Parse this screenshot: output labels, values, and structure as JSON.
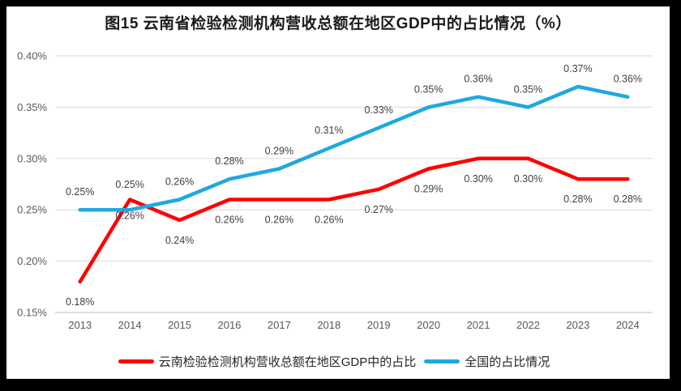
{
  "chart_data": {
    "type": "line",
    "title": "图15 云南省检验检测机构营收总额在地区GDP中的占比情况（%）",
    "categories": [
      "2013",
      "2014",
      "2015",
      "2016",
      "2017",
      "2018",
      "2019",
      "2020",
      "2021",
      "2022",
      "2023",
      "2024"
    ],
    "series": [
      {
        "key": "yunnan",
        "name": "云南检验检测机构营收总额在地区GDP中的占比",
        "color": "#FF0000",
        "values": [
          0.18,
          0.26,
          0.24,
          0.26,
          0.26,
          0.26,
          0.27,
          0.29,
          0.3,
          0.3,
          0.28,
          0.28
        ],
        "labels": [
          "0.18%",
          "0.26%",
          "0.24%",
          "0.26%",
          "0.26%",
          "0.26%",
          "0.27%",
          "0.29%",
          "0.30%",
          "0.30%",
          "0.28%",
          "0.28%"
        ],
        "label_position": "below",
        "label_dy_overrides": {
          "1": 24
        }
      },
      {
        "key": "national",
        "name": "全国的占比情况",
        "color": "#1FA8E1",
        "values": [
          0.25,
          0.25,
          0.26,
          0.28,
          0.29,
          0.31,
          0.33,
          0.35,
          0.36,
          0.35,
          0.37,
          0.36
        ],
        "labels": [
          "0.25%",
          "0.25%",
          "0.26%",
          "0.28%",
          "0.29%",
          "0.31%",
          "0.33%",
          "0.35%",
          "0.36%",
          "0.35%",
          "0.37%",
          "0.36%"
        ],
        "label_position": "above",
        "label_dy_overrides": {
          "1": -27
        }
      }
    ],
    "ylim": [
      0.15,
      0.4
    ],
    "yticks": [
      {
        "value": 0.4,
        "label": "0.40%"
      },
      {
        "value": 0.35,
        "label": "0.35%"
      },
      {
        "value": 0.3,
        "label": "0.30%"
      },
      {
        "value": 0.25,
        "label": "0.25%"
      },
      {
        "value": 0.2,
        "label": "0.20%"
      },
      {
        "value": 0.15,
        "label": "0.15%"
      }
    ],
    "grid": true,
    "legend_position": "bottom",
    "colors": {
      "gridline": "#D9D9D9",
      "axis_line": "#BFBFBF",
      "tick_text": "#595959",
      "data_label_text": "#404040"
    }
  }
}
